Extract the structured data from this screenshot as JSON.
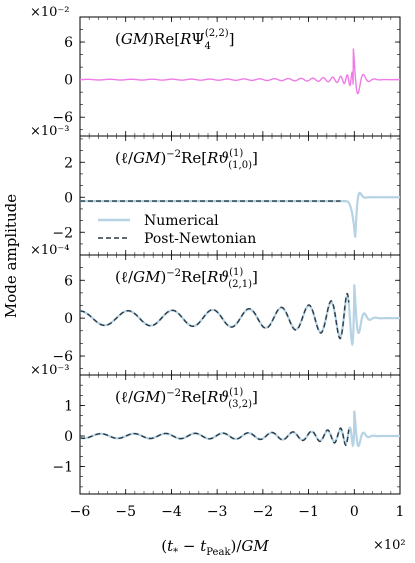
{
  "ylabel": "Mode amplitude",
  "xlabel": "(t* − t_Peak)/GM",
  "x_multiplier": "×10²",
  "x_ticks": [
    -6,
    -5,
    -4,
    -3,
    -2,
    -1,
    0,
    1
  ],
  "x_tick_labels": [
    "−6",
    "−5",
    "−4",
    "−3",
    "−2",
    "−1",
    "0",
    "1"
  ],
  "xlim": [
    -6,
    1
  ],
  "legend": {
    "numerical": "Numerical",
    "pn": "Post-Newtonian"
  },
  "colors": {
    "psi4": "#ee7be6",
    "numerical": "#b6d3e4",
    "pn": "#2b3a45"
  },
  "panels": [
    {
      "label": "(GM)Re[RΨ4(2,2)]",
      "multiplier": "×10⁻²",
      "ylim": [
        -9,
        10
      ],
      "yticks": [
        -6,
        0,
        6
      ],
      "ytick_labels": [
        "−6",
        "0",
        "6"
      ]
    },
    {
      "label": "(ℓ/GM)⁻²Re[Rϑ(1,0)(1)]",
      "multiplier": "×10⁻³",
      "ylim": [
        -3.3,
        3.5
      ],
      "yticks": [
        -2,
        0,
        2
      ],
      "ytick_labels": [
        "−2",
        "0",
        "2"
      ]
    },
    {
      "label": "(ℓ/GM)⁻²Re[Rϑ(2,1)(1)]",
      "multiplier": "×10⁻⁴",
      "ylim": [
        -9,
        10
      ],
      "yticks": [
        -6,
        0,
        6
      ],
      "ytick_labels": [
        "−6",
        "0",
        "6"
      ]
    },
    {
      "label": "(ℓ/GM)⁻²Re[Rϑ(3,2)(1)]",
      "multiplier": "×10⁻³",
      "ylim": [
        -1.9,
        2.0
      ],
      "yticks": [
        -1,
        0,
        1
      ],
      "ytick_labels": [
        "−1",
        "0",
        "1"
      ]
    }
  ],
  "chart_data": [
    {
      "type": "line",
      "x": [
        -6.0,
        -3.0,
        -1.5,
        -1.0,
        -0.75,
        -0.5,
        -0.3,
        -0.2,
        -0.15,
        -0.1,
        -0.06,
        -0.03,
        0.0,
        0.03,
        0.06,
        0.09,
        0.12,
        0.15,
        0.2,
        0.3,
        0.5,
        1.0
      ],
      "series": [
        {
          "y": [
            0.0,
            0.02,
            0.1,
            0.3,
            0.6,
            1.0,
            1.6,
            2.2,
            2.8,
            3.4,
            3.9,
            4.3,
            4.7,
            3.4,
            -5.3,
            2.0,
            -1.0,
            0.6,
            0.2,
            0.05,
            0.0,
            0.0
          ]
        }
      ]
    },
    {
      "type": "line",
      "x": [
        -6.0,
        -2.0,
        -0.5,
        -0.2,
        -0.1,
        -0.05,
        0.0,
        0.03,
        0.06,
        0.1,
        0.15,
        0.2,
        0.3,
        0.5,
        1.0
      ],
      "series": [
        {
          "name": "Numerical",
          "y": [
            -0.22,
            -0.22,
            -0.22,
            -0.22,
            -0.25,
            -0.6,
            -1.6,
            -2.4,
            1.1,
            0.3,
            -0.3,
            0.1,
            0.0,
            0.0,
            0.0
          ]
        },
        {
          "name": "Post-Newtonian",
          "x": [
            -6.0,
            -0.3
          ],
          "y": [
            -0.22,
            -0.22
          ]
        }
      ]
    },
    {
      "type": "line",
      "x": [
        -6.0,
        0.8
      ],
      "series": [
        {
          "name": "Numerical",
          "y": [
            0.2,
            0.0
          ]
        },
        {
          "name": "Post-Newtonian",
          "x": [
            -6.0,
            -0.1
          ],
          "y": [
            0.2,
            0.0
          ]
        }
      ]
    },
    {
      "type": "line",
      "x": [
        -6.0,
        0.8
      ],
      "series": [
        {
          "name": "Numerical",
          "y": [
            0.0,
            0.0
          ]
        },
        {
          "name": "Post-Newtonian",
          "x": [
            -6.0,
            -0.1
          ],
          "y": [
            0.0,
            0.0
          ]
        }
      ]
    }
  ]
}
